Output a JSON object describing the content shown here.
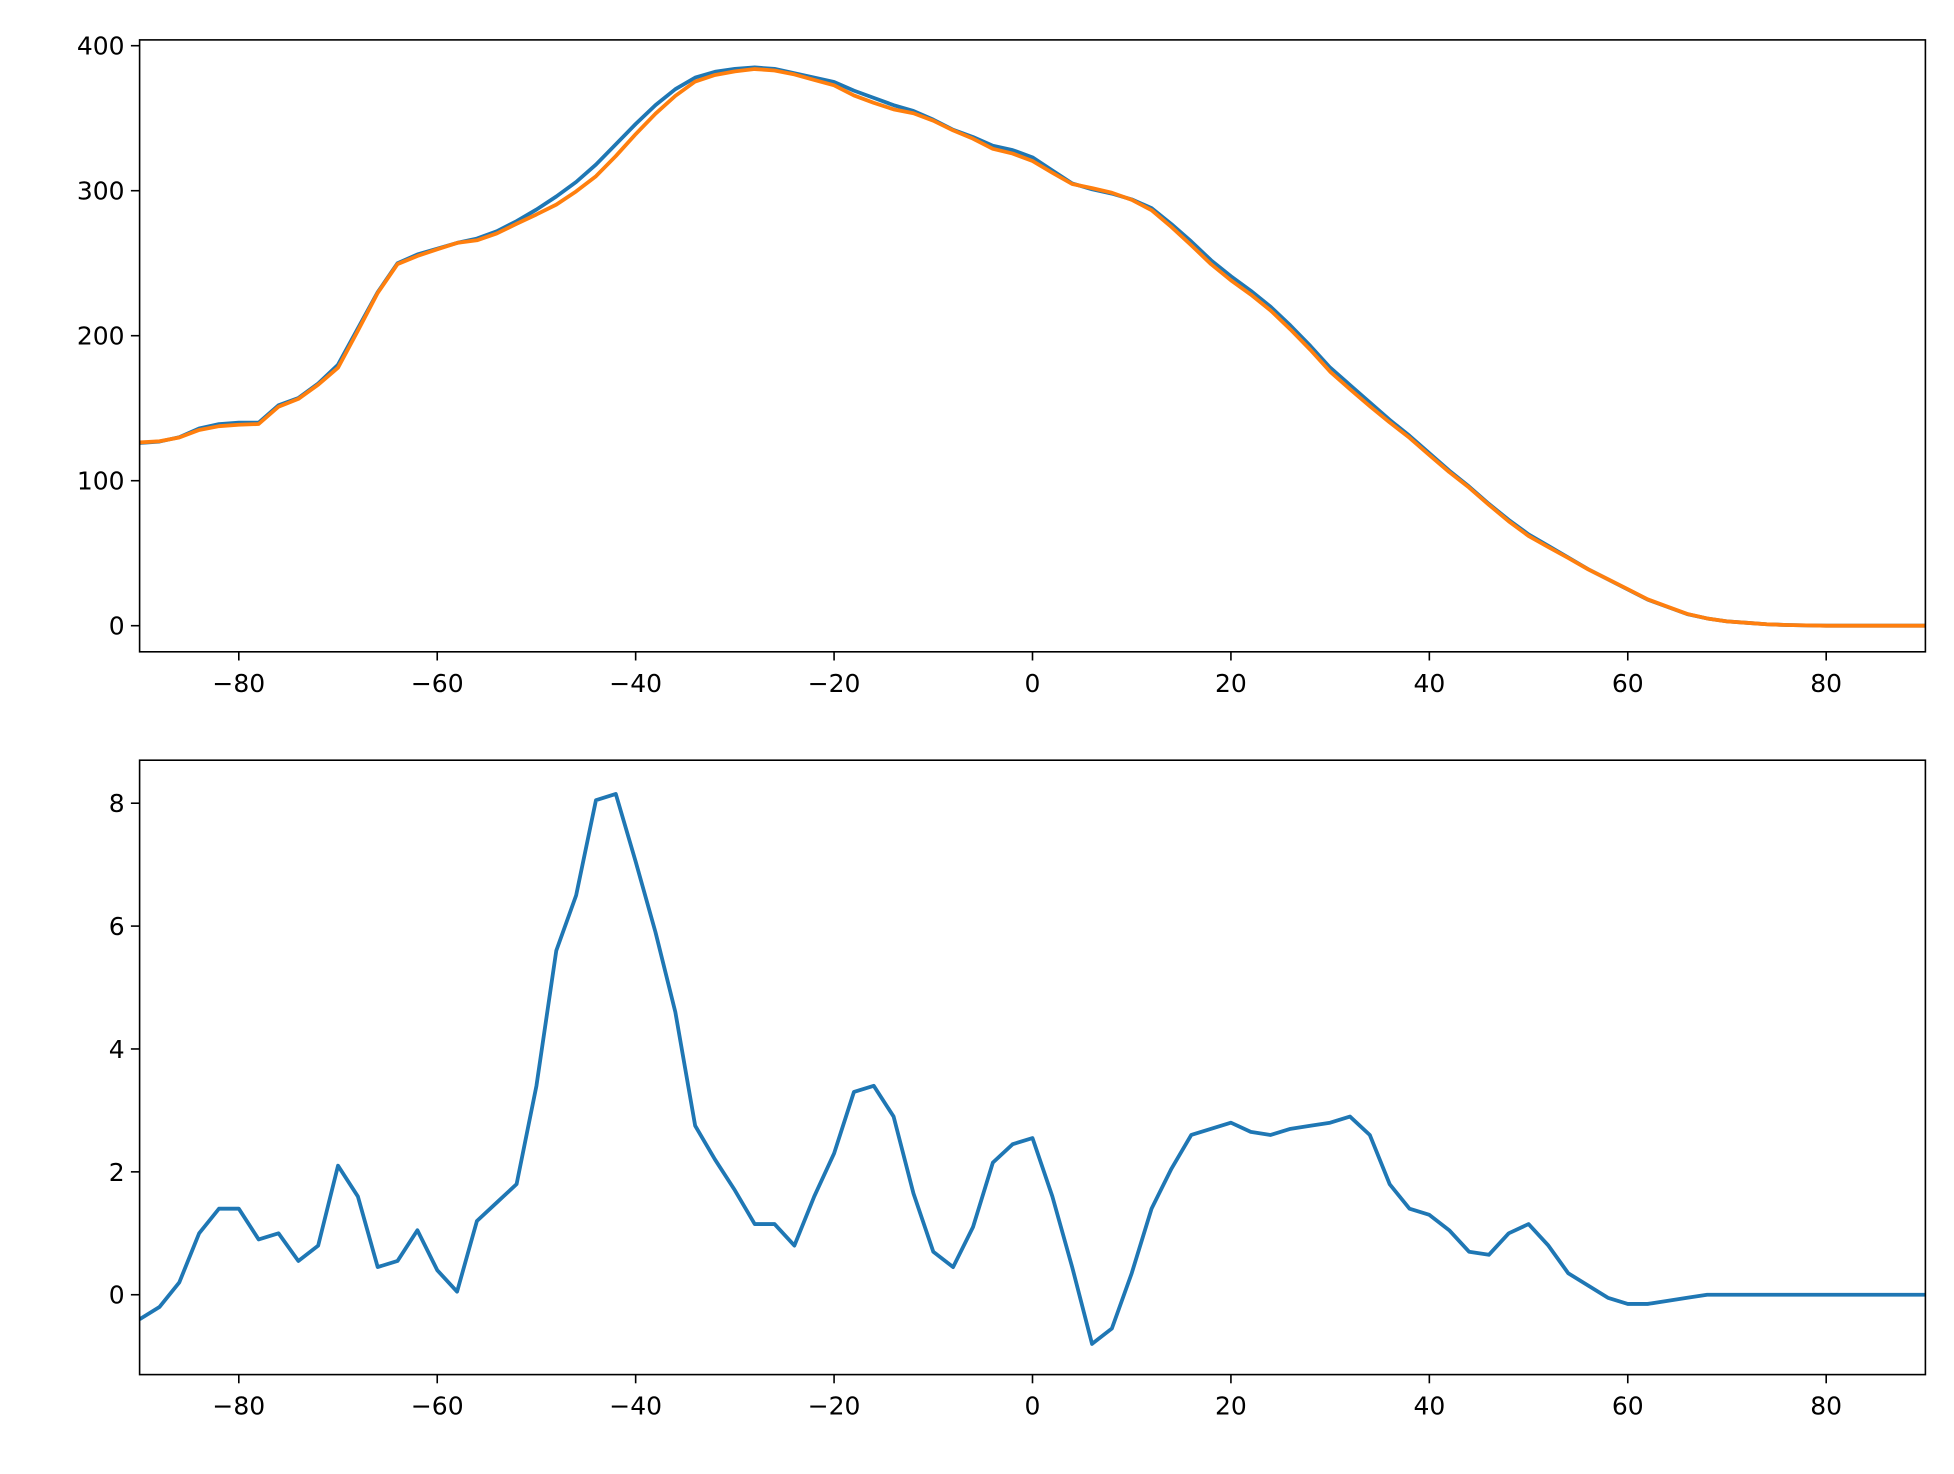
{
  "chart_data": [
    {
      "type": "line",
      "x": [
        -90,
        -88,
        -86,
        -84,
        -82,
        -80,
        -78,
        -76,
        -74,
        -72,
        -70,
        -68,
        -66,
        -64,
        -62,
        -60,
        -58,
        -56,
        -54,
        -52,
        -50,
        -48,
        -46,
        -44,
        -42,
        -40,
        -38,
        -36,
        -34,
        -32,
        -30,
        -28,
        -26,
        -24,
        -22,
        -20,
        -18,
        -16,
        -14,
        -12,
        -10,
        -8,
        -6,
        -4,
        -2,
        0,
        2,
        4,
        6,
        8,
        10,
        12,
        14,
        16,
        18,
        20,
        22,
        24,
        26,
        28,
        30,
        32,
        34,
        36,
        38,
        40,
        42,
        44,
        46,
        48,
        50,
        52,
        54,
        56,
        58,
        60,
        62,
        64,
        66,
        68,
        70,
        72,
        74,
        76,
        78,
        80,
        82,
        84,
        86,
        88,
        90
      ],
      "xlim": [
        -90,
        90
      ],
      "xticks": [
        {
          "value": -80,
          "label": "−80"
        },
        {
          "value": -60,
          "label": "−60"
        },
        {
          "value": -40,
          "label": "−40"
        },
        {
          "value": -20,
          "label": "−20"
        },
        0,
        20,
        40,
        60,
        80
      ],
      "ylim": [
        -18,
        404
      ],
      "yticks": [
        0,
        100,
        200,
        300,
        400
      ],
      "series": [
        {
          "color": "#1f77b4",
          "values": [
            126,
            127,
            130,
            136,
            139,
            140,
            140,
            152,
            157,
            167,
            180,
            205,
            230,
            250,
            256,
            260,
            264,
            267,
            272,
            279,
            287,
            296,
            306,
            318,
            332,
            346,
            359,
            370,
            378,
            382,
            384,
            385,
            384,
            381,
            378,
            375,
            369,
            364,
            359,
            355,
            349,
            342,
            337,
            331,
            328,
            323,
            314,
            305,
            301,
            298,
            294,
            288,
            277,
            265,
            252,
            241,
            231,
            220,
            207,
            193,
            178,
            166,
            154,
            142,
            131,
            119,
            107,
            96,
            84,
            73,
            63,
            55,
            47,
            39,
            32,
            25,
            18,
            13,
            8,
            5,
            3,
            2,
            1,
            0.5,
            0.2,
            0,
            0,
            0,
            0,
            0,
            0
          ]
        },
        {
          "color": "#ff7f0e",
          "values": [
            126.4,
            127.2,
            129.8,
            135,
            137.6,
            138.6,
            139.1,
            151,
            156.4,
            166.2,
            177.9,
            203.4,
            229.5,
            249.4,
            255,
            259.6,
            264,
            265.8,
            270.5,
            277.2,
            283.6,
            290.4,
            299.5,
            310,
            323.9,
            339,
            353.1,
            365.4,
            375.3,
            379.8,
            382.3,
            383.9,
            382.9,
            380.2,
            376.4,
            372.7,
            365.7,
            360.6,
            356.1,
            353.4,
            348.3,
            341.6,
            335.9,
            328.9,
            325.6,
            320.5,
            312.4,
            304.6,
            301.8,
            298.6,
            293.7,
            286.6,
            275,
            262.4,
            249.3,
            238.2,
            228.4,
            217.4,
            204.3,
            190.3,
            175.2,
            163.1,
            151.4,
            140.2,
            129.6,
            117.7,
            106,
            95.3,
            83.4,
            72,
            61.9,
            54.2,
            46.7,
            38.9,
            32.1,
            25.2,
            18.2,
            13.1,
            8.1,
            5,
            3,
            2,
            1,
            0.5,
            0.2,
            0,
            0,
            0,
            0,
            0,
            0
          ]
        }
      ]
    },
    {
      "type": "line",
      "x": [
        -90,
        -88,
        -86,
        -84,
        -82,
        -80,
        -78,
        -76,
        -74,
        -72,
        -70,
        -68,
        -66,
        -64,
        -62,
        -60,
        -58,
        -56,
        -54,
        -52,
        -50,
        -48,
        -46,
        -44,
        -42,
        -40,
        -38,
        -36,
        -34,
        -32,
        -30,
        -28,
        -26,
        -24,
        -22,
        -20,
        -18,
        -16,
        -14,
        -12,
        -10,
        -8,
        -6,
        -4,
        -2,
        0,
        2,
        4,
        6,
        8,
        10,
        12,
        14,
        16,
        18,
        20,
        22,
        24,
        26,
        28,
        30,
        32,
        34,
        36,
        38,
        40,
        42,
        44,
        46,
        48,
        50,
        52,
        54,
        56,
        58,
        60,
        62,
        64,
        66,
        68,
        70,
        72,
        74,
        76,
        78,
        80,
        82,
        84,
        86,
        88,
        90
      ],
      "xlim": [
        -90,
        90
      ],
      "xticks": [
        {
          "value": -80,
          "label": "−80"
        },
        {
          "value": -60,
          "label": "−60"
        },
        {
          "value": -40,
          "label": "−40"
        },
        {
          "value": -20,
          "label": "−20"
        },
        0,
        20,
        40,
        60,
        80
      ],
      "ylim": [
        -1.3,
        8.7
      ],
      "yticks": [
        0,
        2,
        4,
        6,
        8
      ],
      "series": [
        {
          "color": "#1f77b4",
          "values": [
            -0.4,
            -0.2,
            0.2,
            1.0,
            1.4,
            1.4,
            0.9,
            1.0,
            0.55,
            0.8,
            2.1,
            1.6,
            0.45,
            0.55,
            1.05,
            0.4,
            0.05,
            1.2,
            1.5,
            1.8,
            3.4,
            5.6,
            6.5,
            8.05,
            8.15,
            7.05,
            5.9,
            4.6,
            2.75,
            2.2,
            1.7,
            1.15,
            1.15,
            0.8,
            1.6,
            2.3,
            3.3,
            3.4,
            2.9,
            1.65,
            0.7,
            0.45,
            1.1,
            2.15,
            2.45,
            2.55,
            1.6,
            0.45,
            -0.8,
            -0.55,
            0.35,
            1.4,
            2.05,
            2.6,
            2.7,
            2.8,
            2.65,
            2.6,
            2.7,
            2.75,
            2.8,
            2.9,
            2.6,
            1.8,
            1.4,
            1.3,
            1.05,
            0.7,
            0.65,
            1.0,
            1.15,
            0.8,
            0.35,
            0.15,
            -0.05,
            -0.15,
            -0.15,
            -0.1,
            -0.05,
            0,
            0,
            0,
            0,
            0,
            0,
            0,
            0,
            0,
            0,
            0,
            0
          ]
        }
      ]
    }
  ]
}
